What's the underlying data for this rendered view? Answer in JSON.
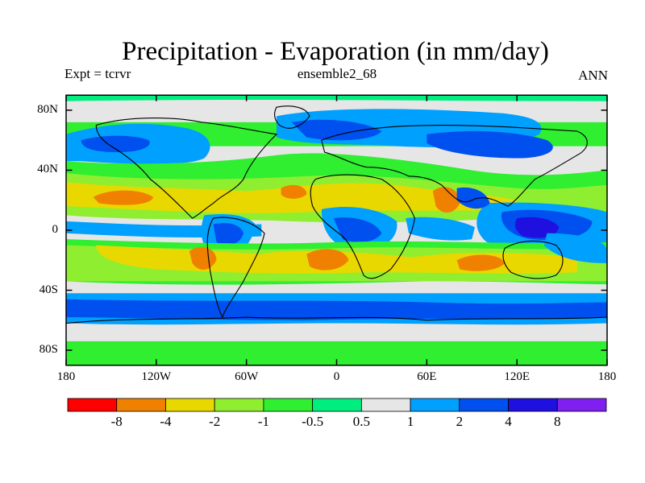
{
  "header": {
    "title": "Precipitation - Evaporation (in mm/day)",
    "expt_label": "Expt = tcrvr",
    "run_label": "ensemble2_68",
    "period_label": "ANN"
  },
  "map": {
    "lat_ticks": [
      {
        "value": 80,
        "label": "80N"
      },
      {
        "value": 40,
        "label": "40N"
      },
      {
        "value": 0,
        "label": "0"
      },
      {
        "value": -40,
        "label": "40S"
      },
      {
        "value": -80,
        "label": "80S"
      }
    ],
    "lon_ticks": [
      {
        "value": -180,
        "label": "180"
      },
      {
        "value": -120,
        "label": "120W"
      },
      {
        "value": -60,
        "label": "60W"
      },
      {
        "value": 0,
        "label": "0"
      },
      {
        "value": 60,
        "label": "60E"
      },
      {
        "value": 120,
        "label": "120E"
      },
      {
        "value": 180,
        "label": "180"
      }
    ],
    "lat_range": [
      -90,
      90
    ],
    "lon_range": [
      -180,
      180
    ]
  },
  "colorbar": {
    "colors": [
      "#ff0000",
      "#f08000",
      "#e8d800",
      "#90ee30",
      "#30ee30",
      "#00ee80",
      "#e6e6e6",
      "#00a0ff",
      "#0050f0",
      "#2010e0",
      "#8020f0"
    ],
    "labels": [
      "-8",
      "-4",
      "-2",
      "-1",
      "-0.5",
      "0.5",
      "1",
      "2",
      "4",
      "8"
    ]
  }
}
